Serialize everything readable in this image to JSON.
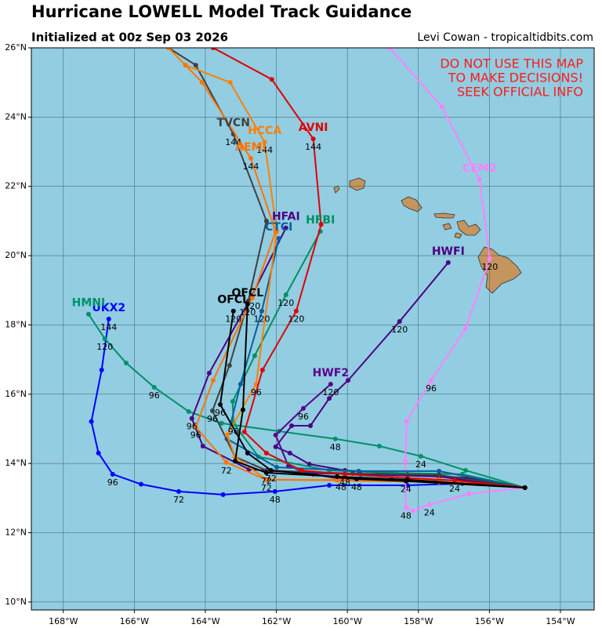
{
  "chart_data": {
    "type": "track_map",
    "title": "Hurricane LOWELL Model Track Guidance",
    "subtitle": "Initialized at 00z Sep 03 2026",
    "credit": "Levi Cowan - tropicaltidbits.com",
    "warning": [
      "DO NOT USE THIS MAP",
      "TO MAKE DECISIONS!",
      "SEEK OFFICIAL INFO"
    ],
    "xlim": [
      -168.9,
      -153.05
    ],
    "ylim": [
      9.77,
      26
    ],
    "xticks": [
      {
        "value": -168,
        "label": "168°W"
      },
      {
        "value": -166,
        "label": "166°W"
      },
      {
        "value": -164,
        "label": "164°W"
      },
      {
        "value": -162,
        "label": "162°W"
      },
      {
        "value": -160,
        "label": "160°W"
      },
      {
        "value": -158,
        "label": "158°W"
      },
      {
        "value": -156,
        "label": "156°W"
      },
      {
        "value": -154,
        "label": "154°W"
      }
    ],
    "yticks": [
      {
        "value": 10,
        "label": "10°N"
      },
      {
        "value": 12,
        "label": "12°N"
      },
      {
        "value": 14,
        "label": "14°N"
      },
      {
        "value": 16,
        "label": "16°N"
      },
      {
        "value": 18,
        "label": "18°N"
      },
      {
        "value": 20,
        "label": "20°N"
      },
      {
        "value": 22,
        "label": "22°N"
      },
      {
        "value": 24,
        "label": "24°N"
      },
      {
        "value": 26,
        "label": "26°N"
      }
    ],
    "grid": true,
    "series": [
      {
        "name": "UKX2",
        "color": "#0000ff",
        "lon": [
          -155.0,
          -156.76,
          -158.31,
          -160.51,
          -162.04,
          -163.5,
          -164.75,
          -165.81,
          -166.61,
          -167.01,
          -167.21,
          -166.92,
          -166.72
        ],
        "lat": [
          13.3,
          13.42,
          13.37,
          13.37,
          13.19,
          13.1,
          13.19,
          13.4,
          13.69,
          14.3,
          15.21,
          16.7,
          18.17
        ],
        "hours": [
          null,
          null,
          null,
          null,
          48,
          null,
          72,
          null,
          96,
          null,
          null,
          null,
          144
        ]
      },
      {
        "name": "HMNI",
        "color": "#00906a",
        "lon": [
          -155.0,
          -156.67,
          -157.93,
          -159.1,
          -160.34,
          -161.93,
          -163.54,
          -164.47,
          -165.44,
          -166.23,
          -166.83,
          -167.29
        ],
        "lat": [
          13.3,
          13.8,
          14.21,
          14.5,
          14.71,
          14.93,
          15.16,
          15.5,
          16.2,
          16.9,
          17.6,
          18.31
        ],
        "hours": [
          null,
          null,
          24,
          null,
          48,
          null,
          null,
          null,
          96,
          null,
          120,
          null
        ]
      },
      {
        "name": "CEM2",
        "color": "#ff80ff",
        "lon": [
          -155.0,
          -156.58,
          -157.69,
          -158.15,
          -158.35,
          -158.37,
          -158.33,
          -157.64,
          -156.67,
          -155.99,
          -156.28,
          -157.34,
          -158.81
        ],
        "lat": [
          13.3,
          13.12,
          12.81,
          12.63,
          12.72,
          14.07,
          15.21,
          16.4,
          17.9,
          19.91,
          22.2,
          24.3,
          26.0
        ],
        "hours": [
          null,
          null,
          24,
          null,
          48,
          null,
          null,
          96,
          null,
          120,
          null,
          null,
          null
        ]
      },
      {
        "name": "HWFI",
        "color": "#4b0082",
        "lon": [
          -155.0,
          -156.54,
          -158.31,
          -160.07,
          -161.07,
          -161.62,
          -162.02,
          -161.57,
          -161.04,
          -160.51,
          -159.98,
          -158.53,
          -157.16
        ],
        "lat": [
          13.3,
          13.58,
          13.69,
          13.8,
          13.98,
          14.3,
          14.48,
          15.09,
          15.09,
          15.88,
          16.4,
          18.1,
          19.8
        ],
        "hours": [
          null,
          null,
          null,
          null,
          null,
          null,
          null,
          null,
          null,
          null,
          null,
          120,
          null
        ]
      },
      {
        "name": "HWF2",
        "color": "#5a008f",
        "lon": [
          -155.0,
          -156.98,
          -158.75,
          -160.18,
          -160.96,
          -161.66,
          -162.02,
          -161.24,
          -160.47
        ],
        "lat": [
          13.3,
          13.51,
          13.53,
          13.55,
          13.69,
          13.92,
          14.82,
          15.59,
          16.29
        ],
        "hours": [
          null,
          null,
          null,
          48,
          null,
          null,
          null,
          96,
          120
        ]
      },
      {
        "name": "HFAI",
        "color": "#4b0082",
        "lon": [
          -155.0,
          -157.42,
          -159.63,
          -161.4,
          -162.77,
          -164.07,
          -164.38,
          -163.89,
          -162.72,
          -161.73
        ],
        "lat": [
          13.3,
          13.62,
          13.69,
          13.73,
          13.83,
          14.5,
          15.3,
          16.61,
          18.78,
          20.8
        ],
        "hours": [
          null,
          null,
          null,
          null,
          null,
          null,
          96,
          null,
          null,
          null
        ]
      },
      {
        "name": "HFBI",
        "color": "#009060",
        "lon": [
          -155.0,
          -156.76,
          -158.75,
          -160.51,
          -162.5,
          -163.21,
          -163.23,
          -162.61,
          -161.73,
          -160.76
        ],
        "lat": [
          13.3,
          13.69,
          13.73,
          13.8,
          14.19,
          15.16,
          15.79,
          17.11,
          18.87,
          20.7
        ],
        "hours": [
          null,
          null,
          null,
          null,
          null,
          96,
          null,
          null,
          120,
          null
        ]
      },
      {
        "name": "CTCI",
        "color": "#0060a0",
        "lon": [
          -155.0,
          -157.42,
          -159.68,
          -161.99,
          -163.39,
          -163.01,
          -162.41,
          -161.93
        ],
        "lat": [
          13.3,
          13.78,
          13.78,
          13.89,
          14.71,
          16.29,
          18.4,
          20.5
        ],
        "hours": [
          null,
          null,
          null,
          null,
          null,
          null,
          120,
          null
        ]
      },
      {
        "name": "TVCN",
        "color": "#404040",
        "lon": [
          -155.0,
          -157.42,
          -159.85,
          -162.28,
          -163.16,
          -163.8,
          -163.32,
          -162.79,
          -162.28,
          -163.21,
          -164.27,
          -165.04
        ],
        "lat": [
          13.3,
          13.67,
          13.71,
          13.8,
          14.19,
          15.52,
          16.83,
          18.69,
          21.0,
          23.51,
          25.5,
          26.0
        ],
        "hours": [
          null,
          null,
          null,
          null,
          null,
          96,
          null,
          null,
          null,
          144,
          null,
          null
        ]
      },
      {
        "name": "HCCA",
        "color": "#ff8000",
        "lon": [
          -155.0,
          -157.42,
          -160.29,
          -162.28,
          -163.16,
          -163.39,
          -162.57,
          -161.99,
          -162.33,
          -163.3,
          -164.56,
          -165.04
        ],
        "lat": [
          13.3,
          13.53,
          13.53,
          13.53,
          14.19,
          14.82,
          16.29,
          20.7,
          23.28,
          25.0,
          25.5,
          26.0
        ],
        "hours": [
          null,
          null,
          null,
          72,
          null,
          null,
          96,
          null,
          144,
          null,
          null,
          null
        ]
      },
      {
        "name": "AEMI",
        "color": "#ff7400",
        "lon": [
          -155.0,
          -157.42,
          -160.29,
          -162.28,
          -163.41,
          -164.27,
          -163.78,
          -162.68,
          -162.02,
          -162.72,
          -164.09,
          -164.56
        ],
        "lat": [
          13.3,
          13.46,
          13.51,
          13.53,
          14.03,
          15.05,
          16.4,
          18.78,
          20.7,
          22.81,
          25.0,
          25.5
        ],
        "hours": [
          null,
          null,
          null,
          null,
          72,
          96,
          null,
          120,
          null,
          144,
          null,
          null
        ]
      },
      {
        "name": "AVNI",
        "color": "#e00000",
        "lon": [
          -155.0,
          -156.98,
          -158.31,
          -160.07,
          -161.29,
          -162.28,
          -162.9,
          -162.39,
          -161.44,
          -160.74,
          -160.96,
          -162.13,
          -163.78
        ],
        "lat": [
          13.3,
          13.51,
          13.58,
          13.69,
          13.8,
          14.3,
          14.91,
          16.7,
          18.4,
          20.9,
          23.37,
          25.09,
          26.0
        ],
        "hours": [
          null,
          24,
          null,
          48,
          null,
          null,
          null,
          null,
          120,
          null,
          144,
          null,
          null
        ]
      },
      {
        "name": "OFCL",
        "color": "#000000",
        "lon": [
          -155.0,
          -158.31,
          -160.29,
          -162.28,
          -163.16,
          -162.94,
          -162.81
        ],
        "lat": [
          13.3,
          13.53,
          13.62,
          13.73,
          14.07,
          15.55,
          18.6
        ],
        "hours": [
          null,
          null,
          null,
          72,
          null,
          null,
          120
        ]
      },
      {
        "name": "OFCL",
        "color": "#000000",
        "lon": [
          -155.0,
          -158.35,
          -159.74,
          -162.15,
          -162.81,
          -163.58,
          -163.21
        ],
        "lat": [
          13.3,
          13.49,
          13.55,
          13.8,
          14.3,
          15.7,
          18.4
        ],
        "hours": [
          null,
          24,
          48,
          72,
          null,
          96,
          120
        ]
      }
    ]
  }
}
